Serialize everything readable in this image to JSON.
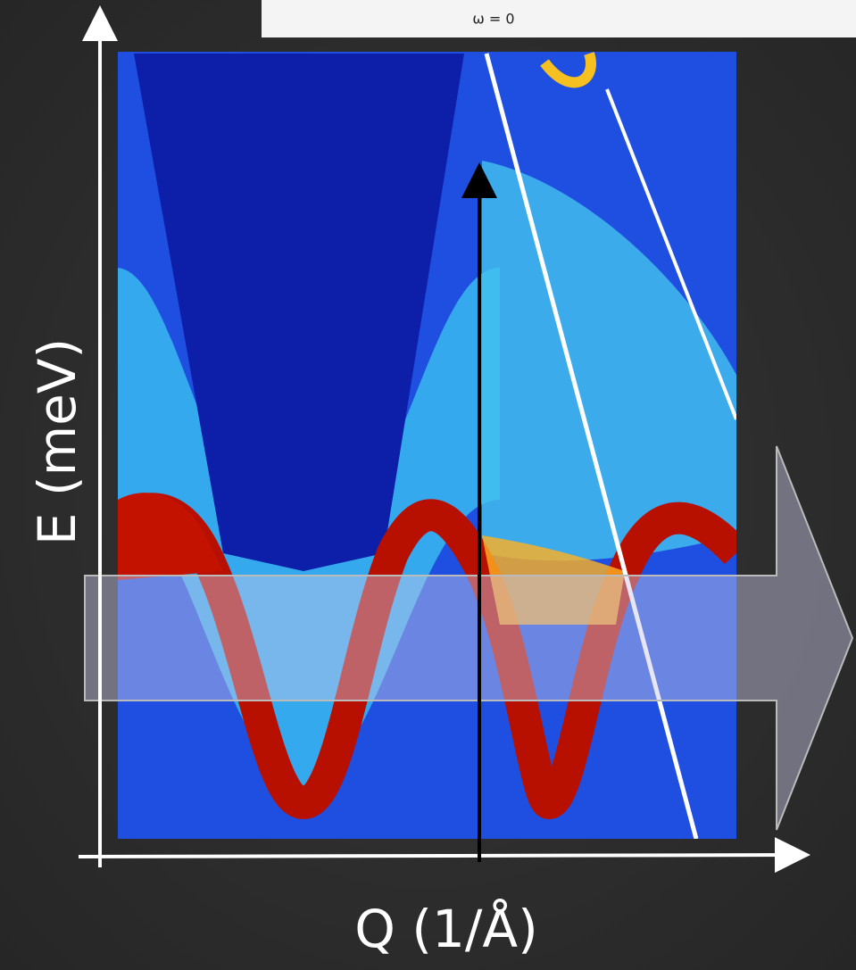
{
  "header": {
    "title": "ω = 0"
  },
  "axes": {
    "y_label": "E (meV)",
    "x_label": "Q (1/Å)"
  }
}
